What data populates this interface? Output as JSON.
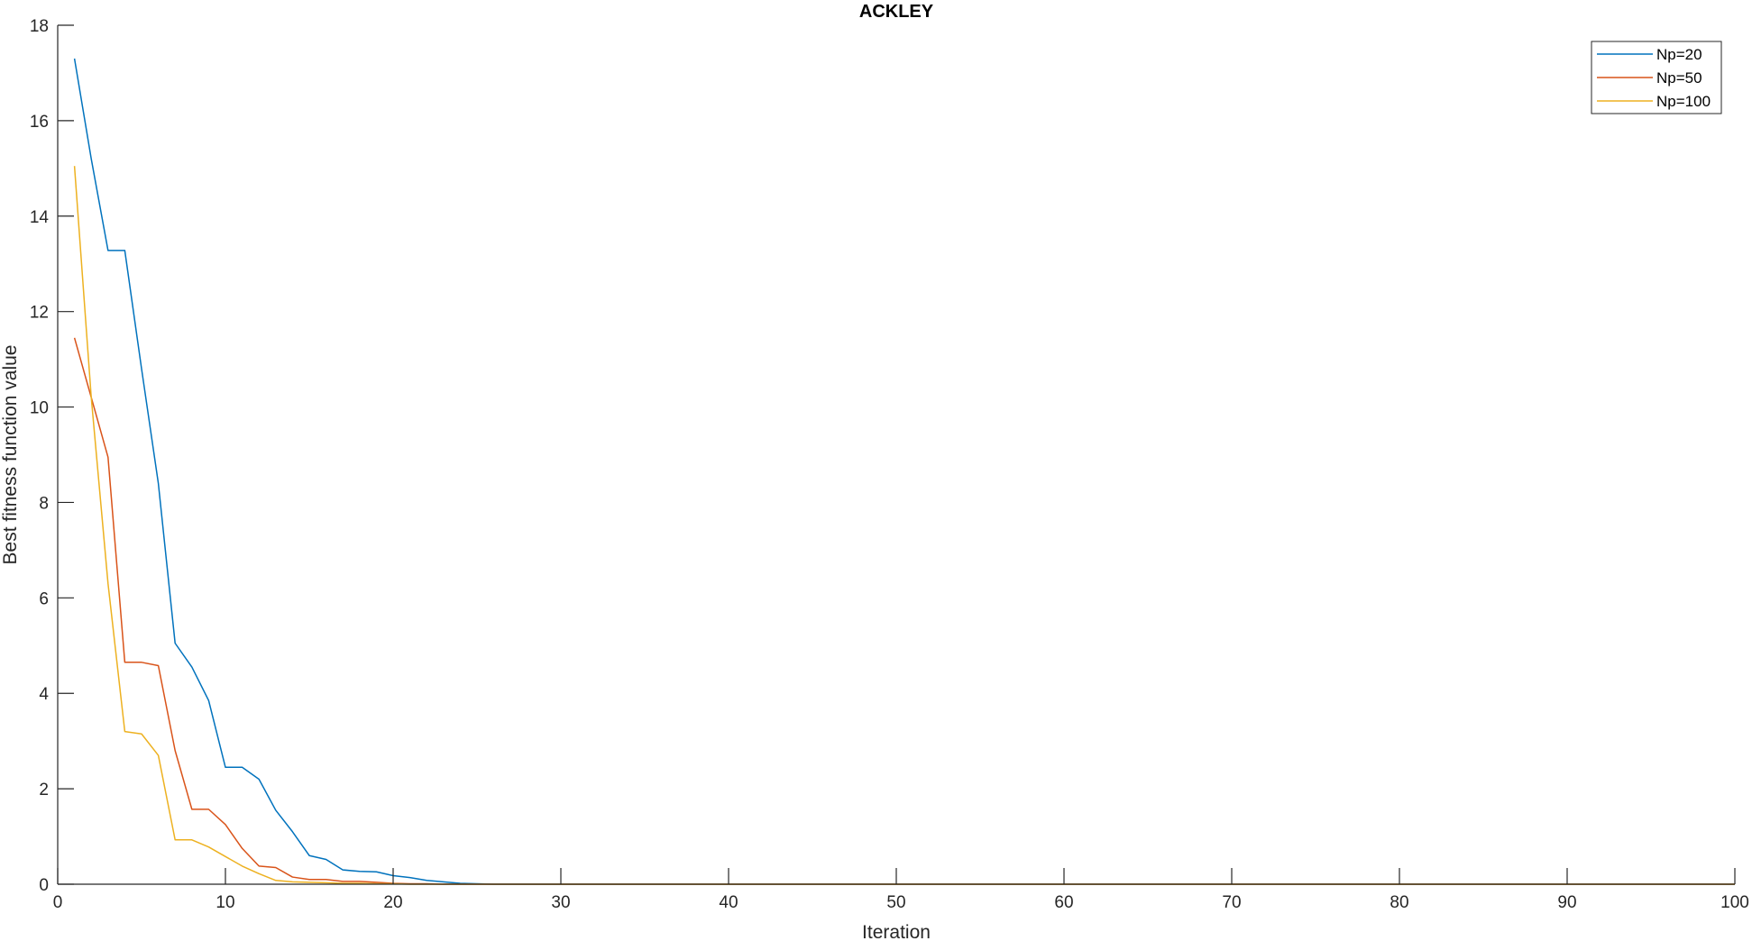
{
  "chart_data": {
    "type": "line",
    "title": "ACKLEY",
    "xlabel": "Iteration",
    "ylabel": "Best fitness function value",
    "xlim": [
      0,
      100
    ],
    "ylim": [
      0,
      18
    ],
    "xticks": [
      0,
      10,
      20,
      30,
      40,
      50,
      60,
      70,
      80,
      90,
      100
    ],
    "yticks": [
      0,
      2,
      4,
      6,
      8,
      10,
      12,
      14,
      16,
      18
    ],
    "grid": false,
    "legend_position": "top-right",
    "series": [
      {
        "name": "Np=20",
        "color": "#0072BD",
        "x": [
          1,
          2,
          3,
          4,
          5,
          6,
          7,
          8,
          9,
          10,
          11,
          12,
          13,
          14,
          15,
          16,
          17,
          18,
          19,
          20,
          21,
          22,
          23,
          24,
          25,
          26,
          27,
          28,
          29,
          30,
          40,
          50,
          60,
          70,
          80,
          90,
          100
        ],
        "y": [
          17.3,
          15.2,
          13.28,
          13.28,
          10.8,
          8.4,
          5.05,
          4.55,
          3.85,
          2.45,
          2.45,
          2.2,
          1.55,
          1.1,
          0.6,
          0.52,
          0.3,
          0.27,
          0.26,
          0.18,
          0.14,
          0.08,
          0.05,
          0.02,
          0.01,
          0.0,
          0.0,
          0.0,
          0.0,
          0.0,
          0.0,
          0.0,
          0.0,
          0.0,
          0.0,
          0.0,
          0.0
        ]
      },
      {
        "name": "Np=50",
        "color": "#D95319",
        "x": [
          1,
          2,
          3,
          4,
          5,
          6,
          7,
          8,
          9,
          10,
          11,
          12,
          13,
          14,
          15,
          16,
          17,
          18,
          19,
          20,
          21,
          22,
          23,
          24,
          25,
          26,
          27,
          28,
          29,
          30,
          40,
          50,
          60,
          70,
          80,
          90,
          100
        ],
        "y": [
          11.45,
          10.2,
          8.95,
          4.65,
          4.65,
          4.58,
          2.8,
          1.57,
          1.57,
          1.25,
          0.75,
          0.38,
          0.35,
          0.15,
          0.1,
          0.1,
          0.06,
          0.06,
          0.04,
          0.02,
          0.01,
          0.01,
          0.0,
          0.0,
          0.0,
          0.0,
          0.0,
          0.0,
          0.0,
          0.0,
          0.0,
          0.0,
          0.0,
          0.0,
          0.0,
          0.0,
          0.0
        ]
      },
      {
        "name": "Np=100",
        "color": "#EDB120",
        "x": [
          1,
          2,
          3,
          4,
          5,
          6,
          7,
          8,
          9,
          10,
          11,
          12,
          13,
          14,
          15,
          16,
          17,
          18,
          19,
          20,
          21,
          22,
          23,
          24,
          25,
          26,
          27,
          28,
          29,
          30,
          40,
          50,
          60,
          70,
          80,
          90,
          100
        ],
        "y": [
          15.05,
          10.2,
          6.3,
          3.2,
          3.15,
          2.7,
          0.93,
          0.93,
          0.78,
          0.58,
          0.38,
          0.22,
          0.08,
          0.05,
          0.04,
          0.03,
          0.02,
          0.02,
          0.01,
          0.01,
          0.0,
          0.0,
          0.0,
          0.0,
          0.0,
          0.0,
          0.0,
          0.0,
          0.0,
          0.0,
          0.0,
          0.0,
          0.0,
          0.0,
          0.0,
          0.0,
          0.0
        ]
      }
    ]
  }
}
